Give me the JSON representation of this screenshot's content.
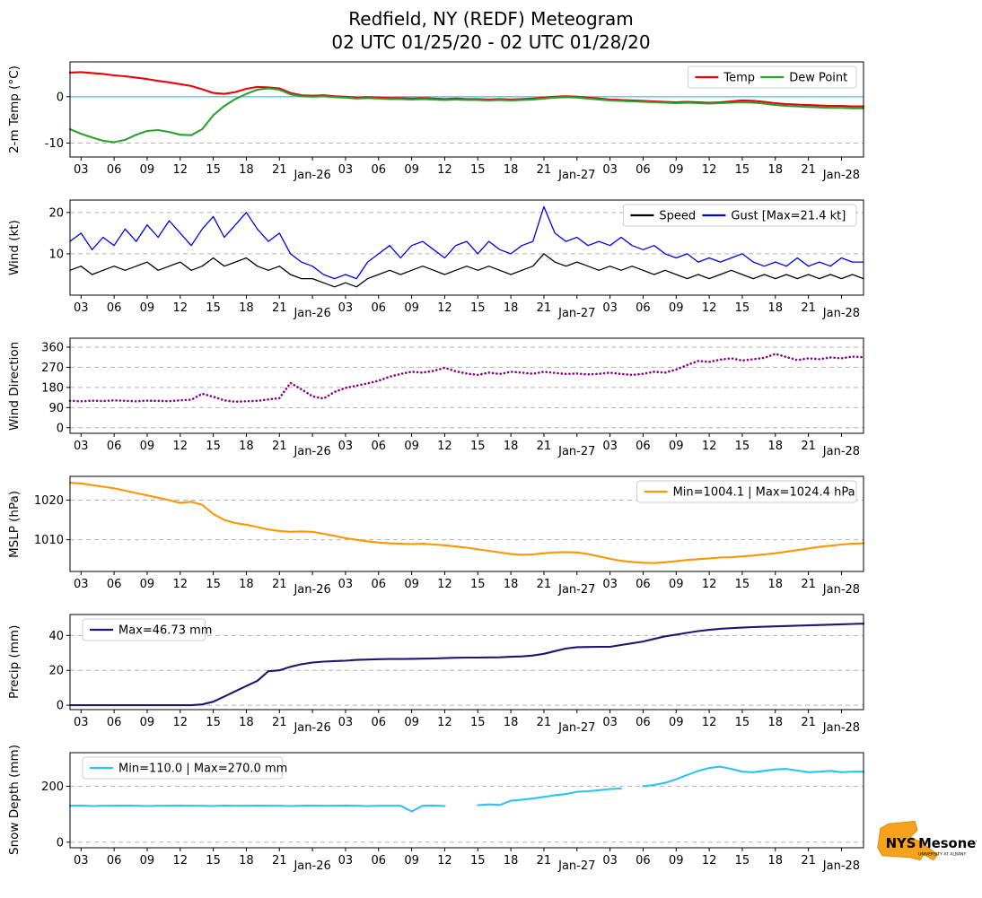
{
  "header": {
    "title": "Redfield, NY (REDF) Meteogram",
    "subtitle": "02 UTC 01/25/20 - 02 UTC 01/28/20"
  },
  "x_axis": {
    "range_hours": [
      2,
      74
    ],
    "tick_hours": [
      3,
      6,
      9,
      12,
      15,
      18,
      21,
      24,
      27,
      30,
      33,
      36,
      39,
      42,
      45,
      48,
      51,
      54,
      57,
      60,
      63,
      66,
      69,
      72
    ],
    "tick_labels": [
      "03",
      "06",
      "09",
      "12",
      "15",
      "18",
      "21",
      "Jan-26",
      "03",
      "06",
      "09",
      "12",
      "15",
      "18",
      "21",
      "Jan-27",
      "03",
      "06",
      "09",
      "12",
      "15",
      "18",
      "21",
      "Jan-28"
    ]
  },
  "x_hours": [
    2,
    3,
    4,
    5,
    6,
    7,
    8,
    9,
    10,
    11,
    12,
    13,
    14,
    15,
    16,
    17,
    18,
    19,
    20,
    21,
    22,
    23,
    24,
    25,
    26,
    27,
    28,
    29,
    30,
    31,
    32,
    33,
    34,
    35,
    36,
    37,
    38,
    39,
    40,
    41,
    42,
    43,
    44,
    45,
    46,
    47,
    48,
    49,
    50,
    51,
    52,
    53,
    54,
    55,
    56,
    57,
    58,
    59,
    60,
    61,
    62,
    63,
    64,
    65,
    66,
    67,
    68,
    69,
    70,
    71,
    72,
    73,
    74
  ],
  "chart_data": [
    {
      "type": "line",
      "ylabel": "2-m Temp (°C)",
      "ylim": [
        -13,
        7.5
      ],
      "yticks": [
        -10,
        0
      ],
      "zero_line": {
        "y": 0,
        "color": "#55c8f0"
      },
      "legend": {
        "position": "right",
        "entries": [
          {
            "label": "Temp",
            "color": "#e8000b"
          },
          {
            "label": "Dew Point",
            "color": "#2ca02c"
          }
        ]
      },
      "series": [
        {
          "name": "Temp",
          "color": "#e8000b",
          "style": "solid",
          "values": [
            5.2,
            5.3,
            5.1,
            4.9,
            4.6,
            4.4,
            4.1,
            3.8,
            3.4,
            3.1,
            2.7,
            2.3,
            1.6,
            0.8,
            0.6,
            1.0,
            1.7,
            2.1,
            2.0,
            1.8,
            0.8,
            0.3,
            0.2,
            0.3,
            0.1,
            0.0,
            -0.2,
            -0.1,
            -0.2,
            -0.3,
            -0.3,
            -0.4,
            -0.3,
            -0.4,
            -0.5,
            -0.4,
            -0.5,
            -0.5,
            -0.6,
            -0.5,
            -0.6,
            -0.5,
            -0.4,
            -0.2,
            0.0,
            0.1,
            0.0,
            -0.2,
            -0.4,
            -0.6,
            -0.7,
            -0.8,
            -0.9,
            -1.0,
            -1.1,
            -1.2,
            -1.1,
            -1.2,
            -1.3,
            -1.2,
            -1.0,
            -0.8,
            -0.9,
            -1.1,
            -1.4,
            -1.6,
            -1.7,
            -1.8,
            -1.9,
            -2.0,
            -2.0,
            -2.1,
            -2.1
          ]
        },
        {
          "name": "Dew Point",
          "color": "#2ca02c",
          "style": "solid",
          "values": [
            -7.0,
            -8.0,
            -8.8,
            -9.5,
            -9.8,
            -9.3,
            -8.2,
            -7.4,
            -7.2,
            -7.6,
            -8.2,
            -8.3,
            -7.0,
            -4.0,
            -2.0,
            -0.5,
            0.6,
            1.5,
            1.8,
            1.5,
            0.5,
            0.1,
            0.0,
            0.1,
            -0.1,
            -0.2,
            -0.4,
            -0.3,
            -0.4,
            -0.5,
            -0.5,
            -0.6,
            -0.5,
            -0.6,
            -0.7,
            -0.6,
            -0.7,
            -0.7,
            -0.8,
            -0.7,
            -0.8,
            -0.7,
            -0.6,
            -0.4,
            -0.2,
            -0.1,
            -0.2,
            -0.4,
            -0.6,
            -0.8,
            -0.9,
            -1.0,
            -1.1,
            -1.2,
            -1.3,
            -1.4,
            -1.3,
            -1.4,
            -1.5,
            -1.4,
            -1.3,
            -1.2,
            -1.3,
            -1.5,
            -1.8,
            -2.0,
            -2.1,
            -2.2,
            -2.3,
            -2.4,
            -2.4,
            -2.5,
            -2.5
          ]
        }
      ]
    },
    {
      "type": "line",
      "ylabel": "Wind (kt)",
      "ylim": [
        0,
        23
      ],
      "yticks": [
        10,
        20
      ],
      "legend": {
        "position": "right",
        "entries": [
          {
            "label": "Speed",
            "color": "#000000"
          },
          {
            "label": "Gust [Max=21.4 kt]",
            "color": "#0000ee"
          }
        ]
      },
      "series": [
        {
          "name": "Speed",
          "color": "#000000",
          "style": "thin",
          "values": [
            6,
            7,
            5,
            6,
            7,
            6,
            7,
            8,
            6,
            7,
            8,
            6,
            7,
            9,
            7,
            8,
            9,
            7,
            6,
            7,
            5,
            4,
            4,
            3,
            2,
            3,
            2,
            4,
            5,
            6,
            5,
            6,
            7,
            6,
            5,
            6,
            7,
            6,
            7,
            6,
            5,
            6,
            7,
            10,
            8,
            7,
            8,
            7,
            6,
            7,
            6,
            7,
            6,
            5,
            6,
            5,
            4,
            5,
            4,
            5,
            6,
            5,
            4,
            5,
            4,
            5,
            4,
            5,
            4,
            5,
            4,
            5,
            4
          ]
        },
        {
          "name": "Gust",
          "color": "#0000ee",
          "style": "thin",
          "values": [
            13,
            15,
            11,
            14,
            12,
            16,
            13,
            17,
            14,
            18,
            15,
            12,
            16,
            19,
            14,
            17,
            20,
            16,
            13,
            15,
            10,
            8,
            7,
            5,
            4,
            5,
            4,
            8,
            10,
            12,
            9,
            12,
            13,
            11,
            9,
            12,
            13,
            10,
            13,
            11,
            10,
            12,
            13,
            21.4,
            15,
            13,
            14,
            12,
            13,
            12,
            14,
            12,
            11,
            12,
            10,
            9,
            10,
            8,
            9,
            8,
            9,
            10,
            8,
            7,
            8,
            7,
            9,
            7,
            8,
            7,
            9,
            8,
            8
          ]
        }
      ]
    },
    {
      "type": "scatter",
      "ylabel": "Wind Direction",
      "ylim": [
        -25,
        400
      ],
      "yticks": [
        0,
        90,
        180,
        270,
        360
      ],
      "series": [
        {
          "name": "Direction",
          "color": "#8b008b",
          "style": "dotted",
          "values": [
            120,
            118,
            121,
            119,
            122,
            120,
            118,
            121,
            120,
            119,
            122,
            125,
            152,
            138,
            122,
            116,
            118,
            120,
            126,
            132,
            200,
            172,
            140,
            130,
            160,
            178,
            188,
            198,
            210,
            228,
            240,
            250,
            246,
            254,
            268,
            252,
            242,
            236,
            246,
            240,
            250,
            246,
            241,
            250,
            245,
            240,
            242,
            238,
            241,
            246,
            240,
            236,
            241,
            250,
            246,
            260,
            280,
            298,
            294,
            304,
            310,
            300,
            306,
            312,
            330,
            316,
            302,
            310,
            306,
            314,
            310,
            318,
            315
          ]
        }
      ]
    },
    {
      "type": "line",
      "ylabel": "MSLP (hPa)",
      "ylim": [
        1002,
        1026
      ],
      "yticks": [
        1010,
        1020
      ],
      "legend": {
        "position": "right",
        "entries": [
          {
            "label": "Min=1004.1 | Max=1024.4 hPa",
            "color": "#ff9500"
          }
        ]
      },
      "series": [
        {
          "name": "MSLP",
          "color": "#ff9500",
          "style": "solid",
          "values": [
            1024.4,
            1024.2,
            1023.8,
            1023.4,
            1023.0,
            1022.4,
            1021.8,
            1021.2,
            1020.6,
            1020.0,
            1019.3,
            1019.6,
            1018.8,
            1016.5,
            1015.0,
            1014.2,
            1013.8,
            1013.2,
            1012.6,
            1012.2,
            1012.0,
            1012.1,
            1012.0,
            1011.5,
            1011.0,
            1010.4,
            1010.0,
            1009.6,
            1009.3,
            1009.1,
            1009.0,
            1008.9,
            1009.0,
            1008.8,
            1008.6,
            1008.3,
            1008.0,
            1007.6,
            1007.2,
            1006.8,
            1006.4,
            1006.2,
            1006.3,
            1006.6,
            1006.8,
            1006.9,
            1006.8,
            1006.4,
            1005.8,
            1005.2,
            1004.7,
            1004.4,
            1004.2,
            1004.1,
            1004.3,
            1004.6,
            1004.9,
            1005.1,
            1005.3,
            1005.5,
            1005.6,
            1005.8,
            1006.0,
            1006.3,
            1006.6,
            1007.0,
            1007.4,
            1007.8,
            1008.2,
            1008.5,
            1008.8,
            1009.0,
            1009.1
          ]
        }
      ]
    },
    {
      "type": "line",
      "ylabel": "Precip (mm)",
      "ylim": [
        -2.5,
        52
      ],
      "yticks": [
        0,
        20,
        40
      ],
      "legend": {
        "position": "left",
        "entries": [
          {
            "label": "Max=46.73 mm",
            "color": "#191970"
          }
        ]
      },
      "series": [
        {
          "name": "Precip",
          "color": "#191970",
          "style": "solid",
          "values": [
            0,
            0,
            0,
            0,
            0,
            0,
            0,
            0,
            0,
            0,
            0,
            0,
            0.5,
            2,
            5,
            8,
            11,
            14,
            19.5,
            20,
            22,
            23.5,
            24.5,
            25,
            25.3,
            25.5,
            26,
            26.2,
            26.4,
            26.5,
            26.5,
            26.6,
            26.7,
            26.8,
            27,
            27.2,
            27.3,
            27.3,
            27.4,
            27.5,
            27.8,
            28,
            28.5,
            29.5,
            31,
            32.5,
            33.3,
            33.4,
            33.5,
            33.5,
            34.5,
            35.5,
            36.5,
            38,
            39.5,
            40.5,
            41.5,
            42.5,
            43.2,
            43.8,
            44.2,
            44.5,
            44.8,
            45,
            45.2,
            45.4,
            45.6,
            45.8,
            46,
            46.2,
            46.4,
            46.6,
            46.73
          ]
        }
      ]
    },
    {
      "type": "line",
      "ylabel": "Snow Depth (mm)",
      "ylim": [
        -20,
        320
      ],
      "yticks": [
        0,
        200
      ],
      "legend": {
        "position": "left",
        "entries": [
          {
            "label": "Min=110.0 | Max=270.0 mm",
            "color": "#2bc4f2"
          }
        ]
      },
      "series": [
        {
          "name": "Snow Depth",
          "color": "#2bc4f2",
          "style": "solid",
          "values": [
            130,
            131,
            129,
            130,
            130,
            131,
            130,
            129,
            130,
            130,
            131,
            130,
            130,
            129,
            131,
            130,
            130,
            131,
            130,
            130,
            129,
            130,
            131,
            130,
            130,
            131,
            130,
            129,
            130,
            130,
            130,
            110,
            130,
            131,
            129,
            null,
            null,
            132,
            135,
            133,
            148,
            152,
            156,
            162,
            168,
            172,
            180,
            182,
            186,
            190,
            192,
            null,
            200,
            205,
            212,
            225,
            240,
            255,
            265,
            270,
            262,
            252,
            250,
            255,
            260,
            262,
            256,
            250,
            252,
            255,
            250,
            252,
            252
          ]
        }
      ]
    }
  ],
  "logo": {
    "nys": "NYS",
    "mesonet": "Mesonet",
    "tagline": "UNIVERSITY AT ALBANY"
  }
}
